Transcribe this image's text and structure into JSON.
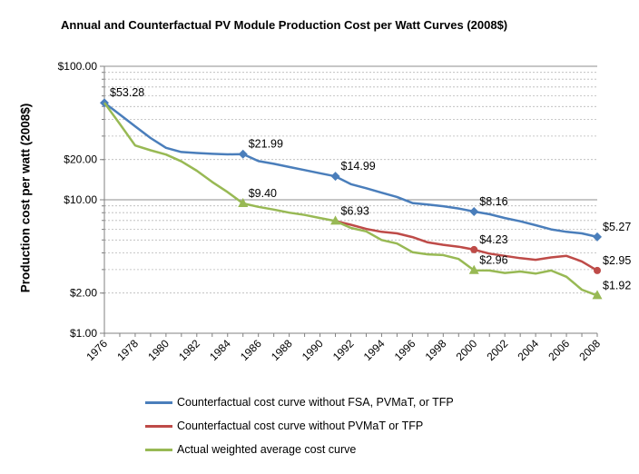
{
  "chart_data": {
    "type": "line",
    "title": "Annual and Counterfactual PV Module Production Cost per Watt Curves (2008$)",
    "xlabel": "",
    "ylabel": "Production cost per watt (2008$)",
    "yscale": "log",
    "ylim": [
      1,
      100
    ],
    "xlim": [
      1976,
      2008
    ],
    "x_tick_labels": [
      "1976",
      "1978",
      "1980",
      "1982",
      "1984",
      "1986",
      "1988",
      "1990",
      "1992",
      "1994",
      "1996",
      "1998",
      "2000",
      "2002",
      "2004",
      "2006",
      "2008"
    ],
    "y_ticks": [
      1,
      2,
      10,
      20,
      100
    ],
    "y_tick_labels": [
      "$1.00",
      "$2.00",
      "$10.00",
      "$20.00",
      "$100.00"
    ],
    "grid": true,
    "legend_position": "bottom",
    "series": [
      {
        "name": "Counterfactual cost curve without FSA, PVMaT, or TFP",
        "color": "#4a7ebb",
        "marker": "diamond",
        "x": [
          1976,
          1977,
          1978,
          1979,
          1980,
          1981,
          1982,
          1983,
          1984,
          1985,
          1986,
          1987,
          1988,
          1989,
          1990,
          1991,
          1992,
          1993,
          1994,
          1995,
          1996,
          1997,
          1998,
          1999,
          2000,
          2001,
          2002,
          2003,
          2004,
          2005,
          2006,
          2007,
          2008
        ],
        "y": [
          53.28,
          43.5,
          35.5,
          29.0,
          24.5,
          22.8,
          22.4,
          22.1,
          21.9,
          21.99,
          19.5,
          18.6,
          17.6,
          16.7,
          15.8,
          14.99,
          13.1,
          12.2,
          11.3,
          10.5,
          9.45,
          9.2,
          8.95,
          8.6,
          8.16,
          7.8,
          7.3,
          6.9,
          6.45,
          6.0,
          5.75,
          5.6,
          5.27
        ],
        "labeled_points": [
          {
            "x": 1976,
            "y": 53.28,
            "label": "$53.28"
          },
          {
            "x": 1985,
            "y": 21.99,
            "label": "$21.99"
          },
          {
            "x": 1991,
            "y": 14.99,
            "label": "$14.99"
          },
          {
            "x": 2000,
            "y": 8.16,
            "label": "$8.16"
          },
          {
            "x": 2008,
            "y": 5.27,
            "label": "$5.27"
          }
        ]
      },
      {
        "name": "Counterfactual cost curve without PVMaT or TFP",
        "color": "#be4b48",
        "marker": "circle",
        "x": [
          1991,
          1992,
          1993,
          1994,
          1995,
          1996,
          1997,
          1998,
          1999,
          2000,
          2001,
          2002,
          2003,
          2004,
          2005,
          2006,
          2007,
          2008
        ],
        "y": [
          6.93,
          6.5,
          6.05,
          5.75,
          5.6,
          5.25,
          4.8,
          4.6,
          4.45,
          4.23,
          3.95,
          3.8,
          3.65,
          3.55,
          3.7,
          3.8,
          3.45,
          2.95
        ],
        "labeled_points": [
          {
            "x": 2000,
            "y": 4.23,
            "label": "$4.23"
          },
          {
            "x": 2008,
            "y": 2.95,
            "label": "$2.95"
          }
        ]
      },
      {
        "name": "Actual weighted average cost curve",
        "color": "#98b954",
        "marker": "triangle",
        "x": [
          1976,
          1977,
          1978,
          1979,
          1980,
          1981,
          1982,
          1983,
          1984,
          1985,
          1986,
          1987,
          1988,
          1989,
          1990,
          1991,
          1992,
          1993,
          1994,
          1995,
          1996,
          1997,
          1998,
          1999,
          2000,
          2001,
          2002,
          2003,
          2004,
          2005,
          2006,
          2007,
          2008
        ],
        "y": [
          53.28,
          37.0,
          25.5,
          23.5,
          21.8,
          19.4,
          16.5,
          13.6,
          11.4,
          9.4,
          8.85,
          8.45,
          8.0,
          7.7,
          7.3,
          6.93,
          6.15,
          5.8,
          5.0,
          4.7,
          4.05,
          3.9,
          3.85,
          3.6,
          2.96,
          2.95,
          2.83,
          2.9,
          2.8,
          2.95,
          2.65,
          2.12,
          1.92
        ],
        "labeled_points": [
          {
            "x": 1985,
            "y": 9.4,
            "label": "$9.40"
          },
          {
            "x": 1991,
            "y": 6.93,
            "label": "$6.93"
          },
          {
            "x": 2000,
            "y": 2.96,
            "label": "$2.96"
          },
          {
            "x": 2008,
            "y": 1.92,
            "label": "$1.92"
          }
        ]
      }
    ]
  }
}
